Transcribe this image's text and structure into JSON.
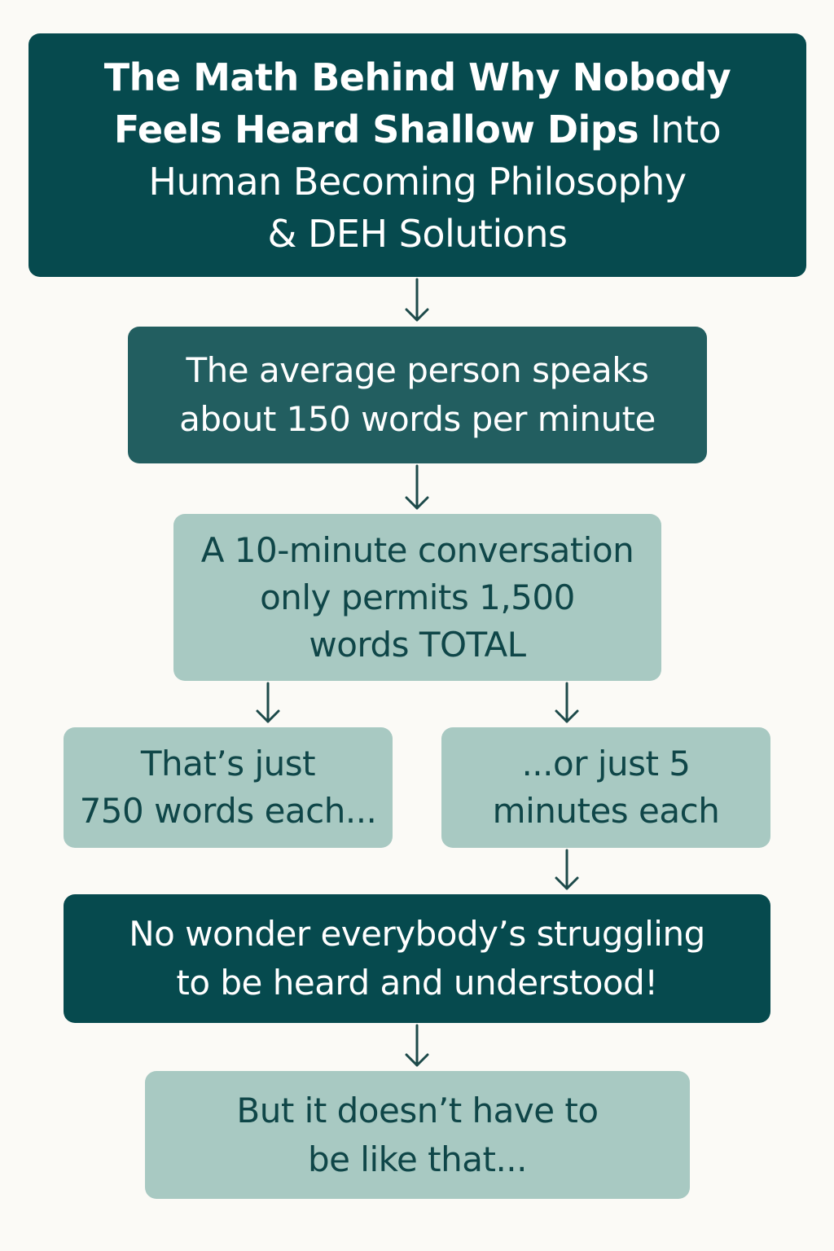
{
  "title": {
    "bold_line_1": "The Math Behind Why Nobody",
    "bold_line_2": "Feels Heard Shallow Dips",
    "regular_line_2": " Into",
    "regular_line_3": "Human Becoming Philosophy",
    "regular_line_4": "& DEH Solutions"
  },
  "steps": {
    "rate": {
      "line_1": "The average person speaks",
      "line_2": "about 150 words per minute"
    },
    "conversation": {
      "line_1": "A 10-minute conversation",
      "line_2": "only permits 1,500",
      "line_3": "words TOTAL"
    },
    "words_each": {
      "line_1": "That’s just",
      "line_2": "750 words each..."
    },
    "minutes_each": {
      "line_1": "...or just 5",
      "line_2": "minutes each"
    },
    "conclusion": {
      "line_1": "No wonder everybody’s struggling",
      "line_2": "to be heard and understood!"
    },
    "ending": {
      "line_1": "But it doesn’t have to",
      "line_2": "be like that..."
    }
  },
  "colors": {
    "background": "#fbfaf6",
    "dark_teal": "#064a4e",
    "mid_teal": "#225e60",
    "light_teal": "#a8c9c2",
    "dark_text": "#0f4648",
    "arrow": "#1d4a4a"
  }
}
